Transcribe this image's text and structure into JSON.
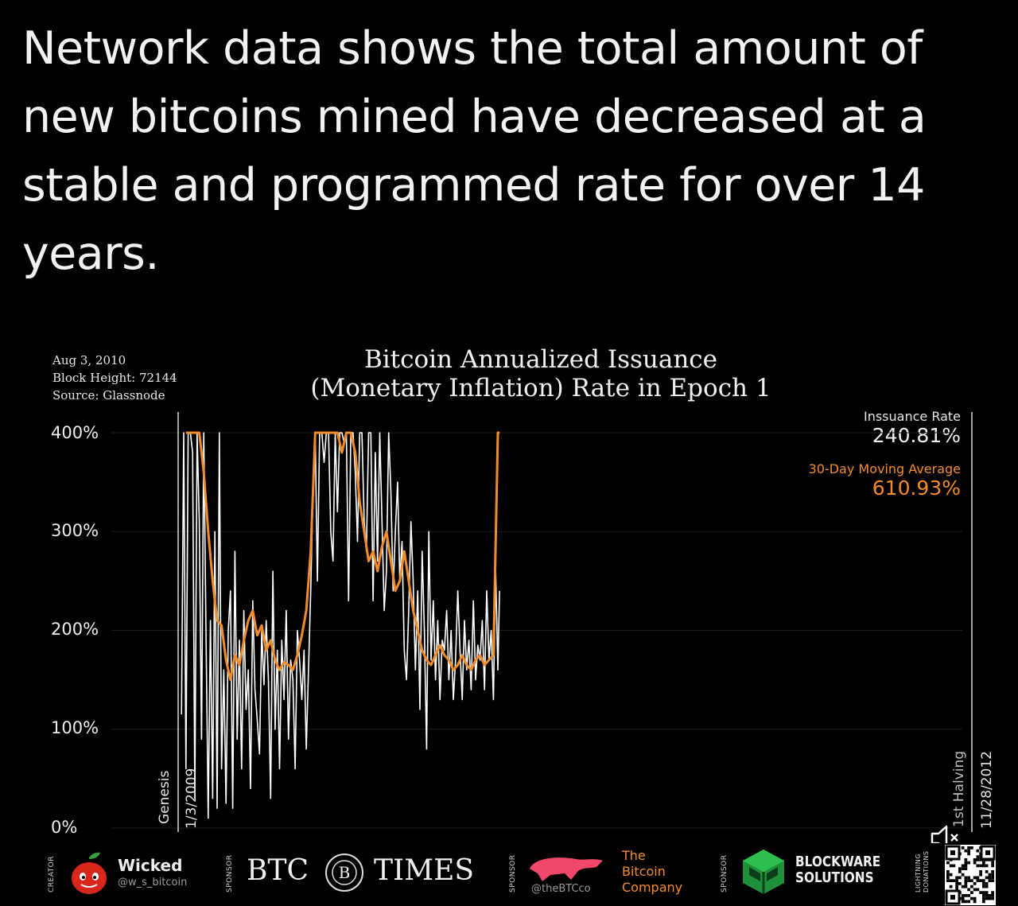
{
  "headline": "Network data shows the total amount of new bitcoins mined have decreased at a stable and programmed rate for over 14 years.",
  "meta": {
    "date": "Aug 3, 2010",
    "block_height": "Block Height: 72144",
    "source": "Source: Glassnode"
  },
  "readouts": {
    "issuance_label": "Inssuance Rate",
    "issuance_value": "240.81%",
    "ma_label": "30-Day Moving Average",
    "ma_value": "610.93%"
  },
  "markers": {
    "genesis_label": "Genesis",
    "genesis_date": "1/3/2009",
    "halving_label": "1st Halving",
    "halving_date": "11/28/2012"
  },
  "footer": {
    "creator_tag": "CREATOR",
    "creator_name": "Wicked",
    "creator_handle": "@w_s_bitcoin",
    "sponsor_tag": "SPONSOR",
    "btc_times_left": "BTC",
    "btc_times_right": "TIMES",
    "btc_times_mark": "B",
    "bitcoin_co_handle": "@theBTCco",
    "bitcoin_co_name_1": "The",
    "bitcoin_co_name_2": "Bitcoin",
    "bitcoin_co_name_3": "Company",
    "blockware_1": "BLOCKWARE",
    "blockware_2": "SOLUTIONS",
    "lightning_1": "LIGHTNING",
    "lightning_2": "DONATIONS"
  },
  "colors": {
    "issuance": "#ffffff",
    "moving_average": "#f28c28",
    "background": "#000000"
  },
  "chart_data": {
    "type": "line",
    "title": "Bitcoin Annualized Issuance\n(Monetary Inflation) Rate in Epoch 1",
    "ylim": [
      0,
      400
    ],
    "yticks": [
      "400%",
      "300%",
      "200%",
      "100%",
      "0%"
    ],
    "xlim": [
      "2009-01-03",
      "2012-11-28"
    ],
    "series": [
      {
        "name": "Inssuance Rate",
        "color": "#ffffff",
        "x": [
          "2009-01-09",
          "2009-01-13",
          "2009-01-17",
          "2009-01-21",
          "2009-01-25",
          "2009-01-29",
          "2009-02-02",
          "2009-02-06",
          "2009-02-10",
          "2009-02-14",
          "2009-02-18",
          "2009-02-22",
          "2009-02-26",
          "2009-03-02",
          "2009-03-06",
          "2009-03-10",
          "2009-03-14",
          "2009-03-18",
          "2009-03-22",
          "2009-03-26",
          "2009-03-30",
          "2009-04-03",
          "2009-04-07",
          "2009-04-11",
          "2009-04-15",
          "2009-04-19",
          "2009-04-23",
          "2009-04-27",
          "2009-05-01",
          "2009-05-05",
          "2009-05-09",
          "2009-05-13",
          "2009-05-17",
          "2009-05-21",
          "2009-05-25",
          "2009-05-29",
          "2009-06-02",
          "2009-06-06",
          "2009-06-10",
          "2009-06-14",
          "2009-06-18",
          "2009-06-22",
          "2009-06-26",
          "2009-06-30",
          "2009-07-04",
          "2009-07-08",
          "2009-07-12",
          "2009-07-16",
          "2009-07-20",
          "2009-07-24",
          "2009-07-28",
          "2009-08-01",
          "2009-08-05",
          "2009-08-09",
          "2009-08-13",
          "2009-08-17",
          "2009-08-21",
          "2009-08-25",
          "2009-08-29",
          "2009-09-02",
          "2009-09-06",
          "2009-09-10",
          "2009-09-14",
          "2009-09-18",
          "2009-09-22",
          "2009-09-26",
          "2009-09-30",
          "2009-10-04",
          "2009-10-08",
          "2009-10-12",
          "2009-10-16",
          "2009-10-20",
          "2009-10-24",
          "2009-10-28",
          "2009-11-01",
          "2009-11-05",
          "2009-11-09",
          "2009-11-13",
          "2009-11-17",
          "2009-11-21",
          "2009-11-25",
          "2009-11-29",
          "2009-12-03",
          "2009-12-07",
          "2009-12-11",
          "2009-12-15",
          "2009-12-19",
          "2009-12-23",
          "2009-12-27",
          "2009-12-31",
          "2010-01-04",
          "2010-01-08",
          "2010-01-12",
          "2010-01-16",
          "2010-01-20",
          "2010-01-24",
          "2010-01-28",
          "2010-02-01",
          "2010-02-05",
          "2010-02-09",
          "2010-02-13",
          "2010-02-17",
          "2010-02-21",
          "2010-02-25",
          "2010-03-01",
          "2010-03-05",
          "2010-03-09",
          "2010-03-13",
          "2010-03-17",
          "2010-03-21",
          "2010-03-25",
          "2010-03-29",
          "2010-04-02",
          "2010-04-06",
          "2010-04-10",
          "2010-04-14",
          "2010-04-18",
          "2010-04-22",
          "2010-04-26",
          "2010-04-30",
          "2010-05-04",
          "2010-05-08",
          "2010-05-12",
          "2010-05-16",
          "2010-05-20",
          "2010-05-24",
          "2010-05-28",
          "2010-06-01",
          "2010-06-05",
          "2010-06-09",
          "2010-06-13",
          "2010-06-17",
          "2010-06-21",
          "2010-06-25",
          "2010-06-29",
          "2010-07-03",
          "2010-07-07",
          "2010-07-11",
          "2010-07-15",
          "2010-07-19",
          "2010-07-23",
          "2010-07-27",
          "2010-07-31",
          "2010-08-03"
        ],
        "y": [
          115,
          400,
          60,
          400,
          400,
          380,
          30,
          400,
          310,
          90,
          400,
          200,
          10,
          210,
          30,
          300,
          20,
          400,
          60,
          160,
          25,
          200,
          240,
          20,
          280,
          90,
          190,
          60,
          220,
          120,
          160,
          40,
          230,
          140,
          110,
          75,
          200,
          145,
          210,
          150,
          30,
          260,
          100,
          180,
          60,
          190,
          130,
          220,
          90,
          170,
          150,
          60,
          200,
          170,
          130,
          180,
          80,
          160,
          240,
          340,
          400,
          250,
          400,
          400,
          370,
          400,
          400,
          300,
          270,
          400,
          320,
          400,
          400,
          390,
          400,
          230,
          400,
          400,
          360,
          290,
          400,
          400,
          310,
          280,
          400,
          400,
          230,
          380,
          270,
          400,
          310,
          220,
          260,
          400,
          340,
          240,
          300,
          350,
          250,
          290,
          180,
          150,
          220,
          310,
          250,
          160,
          240,
          120,
          280,
          200,
          80,
          300,
          170,
          230,
          150,
          210,
          130,
          190,
          180,
          220,
          150,
          200,
          130,
          170,
          240,
          180,
          130,
          210,
          160,
          190,
          140,
          230,
          150,
          185,
          170,
          210,
          140,
          240,
          170,
          200,
          130,
          260,
          160,
          240
        ]
      },
      {
        "name": "30-Day Moving Average",
        "color": "#f28c28",
        "x": [
          "2009-01-17",
          "2009-01-25",
          "2009-02-02",
          "2009-02-10",
          "2009-02-18",
          "2009-02-26",
          "2009-03-06",
          "2009-03-14",
          "2009-03-22",
          "2009-03-30",
          "2009-04-07",
          "2009-04-15",
          "2009-04-23",
          "2009-05-01",
          "2009-05-09",
          "2009-05-17",
          "2009-05-25",
          "2009-06-02",
          "2009-06-10",
          "2009-06-18",
          "2009-06-26",
          "2009-07-04",
          "2009-07-12",
          "2009-07-20",
          "2009-07-28",
          "2009-08-05",
          "2009-08-13",
          "2009-08-21",
          "2009-08-29",
          "2009-09-06",
          "2009-09-14",
          "2009-09-22",
          "2009-09-30",
          "2009-10-08",
          "2009-10-16",
          "2009-10-24",
          "2009-11-01",
          "2009-11-09",
          "2009-11-17",
          "2009-11-25",
          "2009-12-03",
          "2009-12-11",
          "2009-12-19",
          "2009-12-27",
          "2010-01-04",
          "2010-01-12",
          "2010-01-20",
          "2010-01-28",
          "2010-02-05",
          "2010-02-13",
          "2010-02-21",
          "2010-03-01",
          "2010-03-09",
          "2010-03-17",
          "2010-03-25",
          "2010-04-02",
          "2010-04-10",
          "2010-04-18",
          "2010-04-26",
          "2010-05-04",
          "2010-05-12",
          "2010-05-20",
          "2010-05-28",
          "2010-06-05",
          "2010-06-13",
          "2010-06-21",
          "2010-06-29",
          "2010-07-07",
          "2010-07-15",
          "2010-07-23",
          "2010-07-31",
          "2010-08-03"
        ],
        "y": [
          400,
          400,
          400,
          400,
          360,
          300,
          250,
          210,
          205,
          170,
          150,
          175,
          165,
          190,
          210,
          220,
          195,
          205,
          180,
          190,
          170,
          160,
          168,
          165,
          160,
          175,
          195,
          220,
          280,
          400,
          400,
          400,
          400,
          400,
          400,
          380,
          400,
          400,
          380,
          330,
          300,
          270,
          280,
          260,
          285,
          300,
          270,
          240,
          250,
          280,
          250,
          220,
          200,
          180,
          170,
          165,
          175,
          185,
          175,
          170,
          160,
          165,
          175,
          165,
          160,
          170,
          175,
          165,
          170,
          175,
          400,
          400
        ]
      }
    ]
  }
}
